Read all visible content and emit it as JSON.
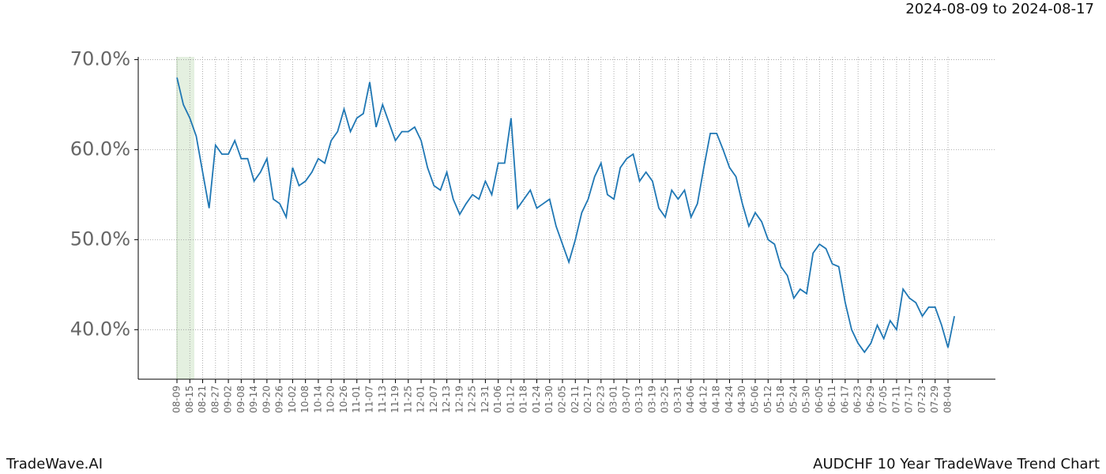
{
  "chart_data": {
    "type": "line",
    "subtitle": "2024-08-09 to 2024-08-17",
    "footer_left": "TradeWave.AI",
    "footer_right": "AUDCHF 10 Year TradeWave Trend Chart",
    "categories": [
      "08-09",
      null,
      "08-15",
      null,
      "08-21",
      null,
      "08-27",
      null,
      "09-02",
      null,
      "09-08",
      null,
      "09-14",
      null,
      "09-20",
      null,
      "09-26",
      null,
      "10-02",
      null,
      "10-08",
      null,
      "10-14",
      null,
      "10-20",
      null,
      "10-26",
      null,
      "11-01",
      null,
      "11-07",
      null,
      "11-13",
      null,
      "11-19",
      null,
      "11-25",
      null,
      "12-01",
      null,
      "12-07",
      null,
      "12-13",
      null,
      "12-19",
      null,
      "12-25",
      null,
      "12-31",
      null,
      "01-06",
      null,
      "01-12",
      null,
      "01-18",
      null,
      "01-24",
      null,
      "01-30",
      null,
      "02-05",
      null,
      "02-11",
      null,
      "02-17",
      null,
      "02-23",
      null,
      "03-01",
      null,
      "03-07",
      null,
      "03-13",
      null,
      "03-19",
      null,
      "03-25",
      null,
      "03-31",
      null,
      "04-06",
      null,
      "04-12",
      null,
      "04-18",
      null,
      "04-24",
      null,
      "04-30",
      null,
      "05-06",
      null,
      "05-12",
      null,
      "05-18",
      null,
      "05-24",
      null,
      "05-30",
      null,
      "06-05",
      null,
      "06-11",
      null,
      "06-17",
      null,
      "06-23",
      null,
      "06-29",
      null,
      "07-05",
      null,
      "07-11",
      null,
      "07-17",
      null,
      "07-23",
      null,
      "07-29",
      null,
      "08-04",
      null
    ],
    "values": [
      68,
      65,
      63.5,
      61.5,
      57.5,
      53.5,
      60.5,
      59.5,
      59.5,
      61,
      59,
      59,
      56.5,
      57.5,
      59,
      54.5,
      54,
      52.5,
      58,
      56,
      56.5,
      57.5,
      59,
      58.5,
      61,
      62,
      64.5,
      62,
      63.5,
      64,
      67.5,
      62.5,
      65,
      63,
      61,
      62,
      62,
      62.5,
      61,
      58,
      56,
      55.5,
      57.5,
      54.5,
      52.8,
      54,
      55,
      54.5,
      56.5,
      55,
      58.5,
      58.5,
      63.5,
      53.5,
      54.5,
      55.5,
      53.5,
      54,
      54.5,
      51.5,
      49.5,
      47.5,
      50,
      53,
      54.5,
      57,
      58.5,
      55,
      54.5,
      58,
      59,
      59.5,
      56.5,
      57.5,
      56.5,
      53.5,
      52.5,
      55.5,
      54.5,
      55.5,
      52.5,
      54,
      58,
      61.8,
      61.8,
      60,
      58,
      57,
      54,
      51.5,
      53,
      52,
      50,
      49.5,
      47,
      46,
      43.5,
      44.5,
      44,
      48.5,
      49.5,
      49,
      47.3,
      47,
      43,
      40,
      38.5,
      37.5,
      38.5,
      40.5,
      39,
      41,
      40,
      44.5,
      43.5,
      43,
      41.5,
      42.5,
      42.5,
      40.5,
      38,
      41.5
    ],
    "color": "#1f77b4",
    "ylim": [
      34.5,
      70.3
    ],
    "yticks": [
      {
        "value": 40,
        "label": "40.0%"
      },
      {
        "value": 50,
        "label": "50.0%"
      },
      {
        "value": 60,
        "label": "60.0%"
      },
      {
        "value": 70,
        "label": "70.0%"
      }
    ],
    "grid": true
  }
}
